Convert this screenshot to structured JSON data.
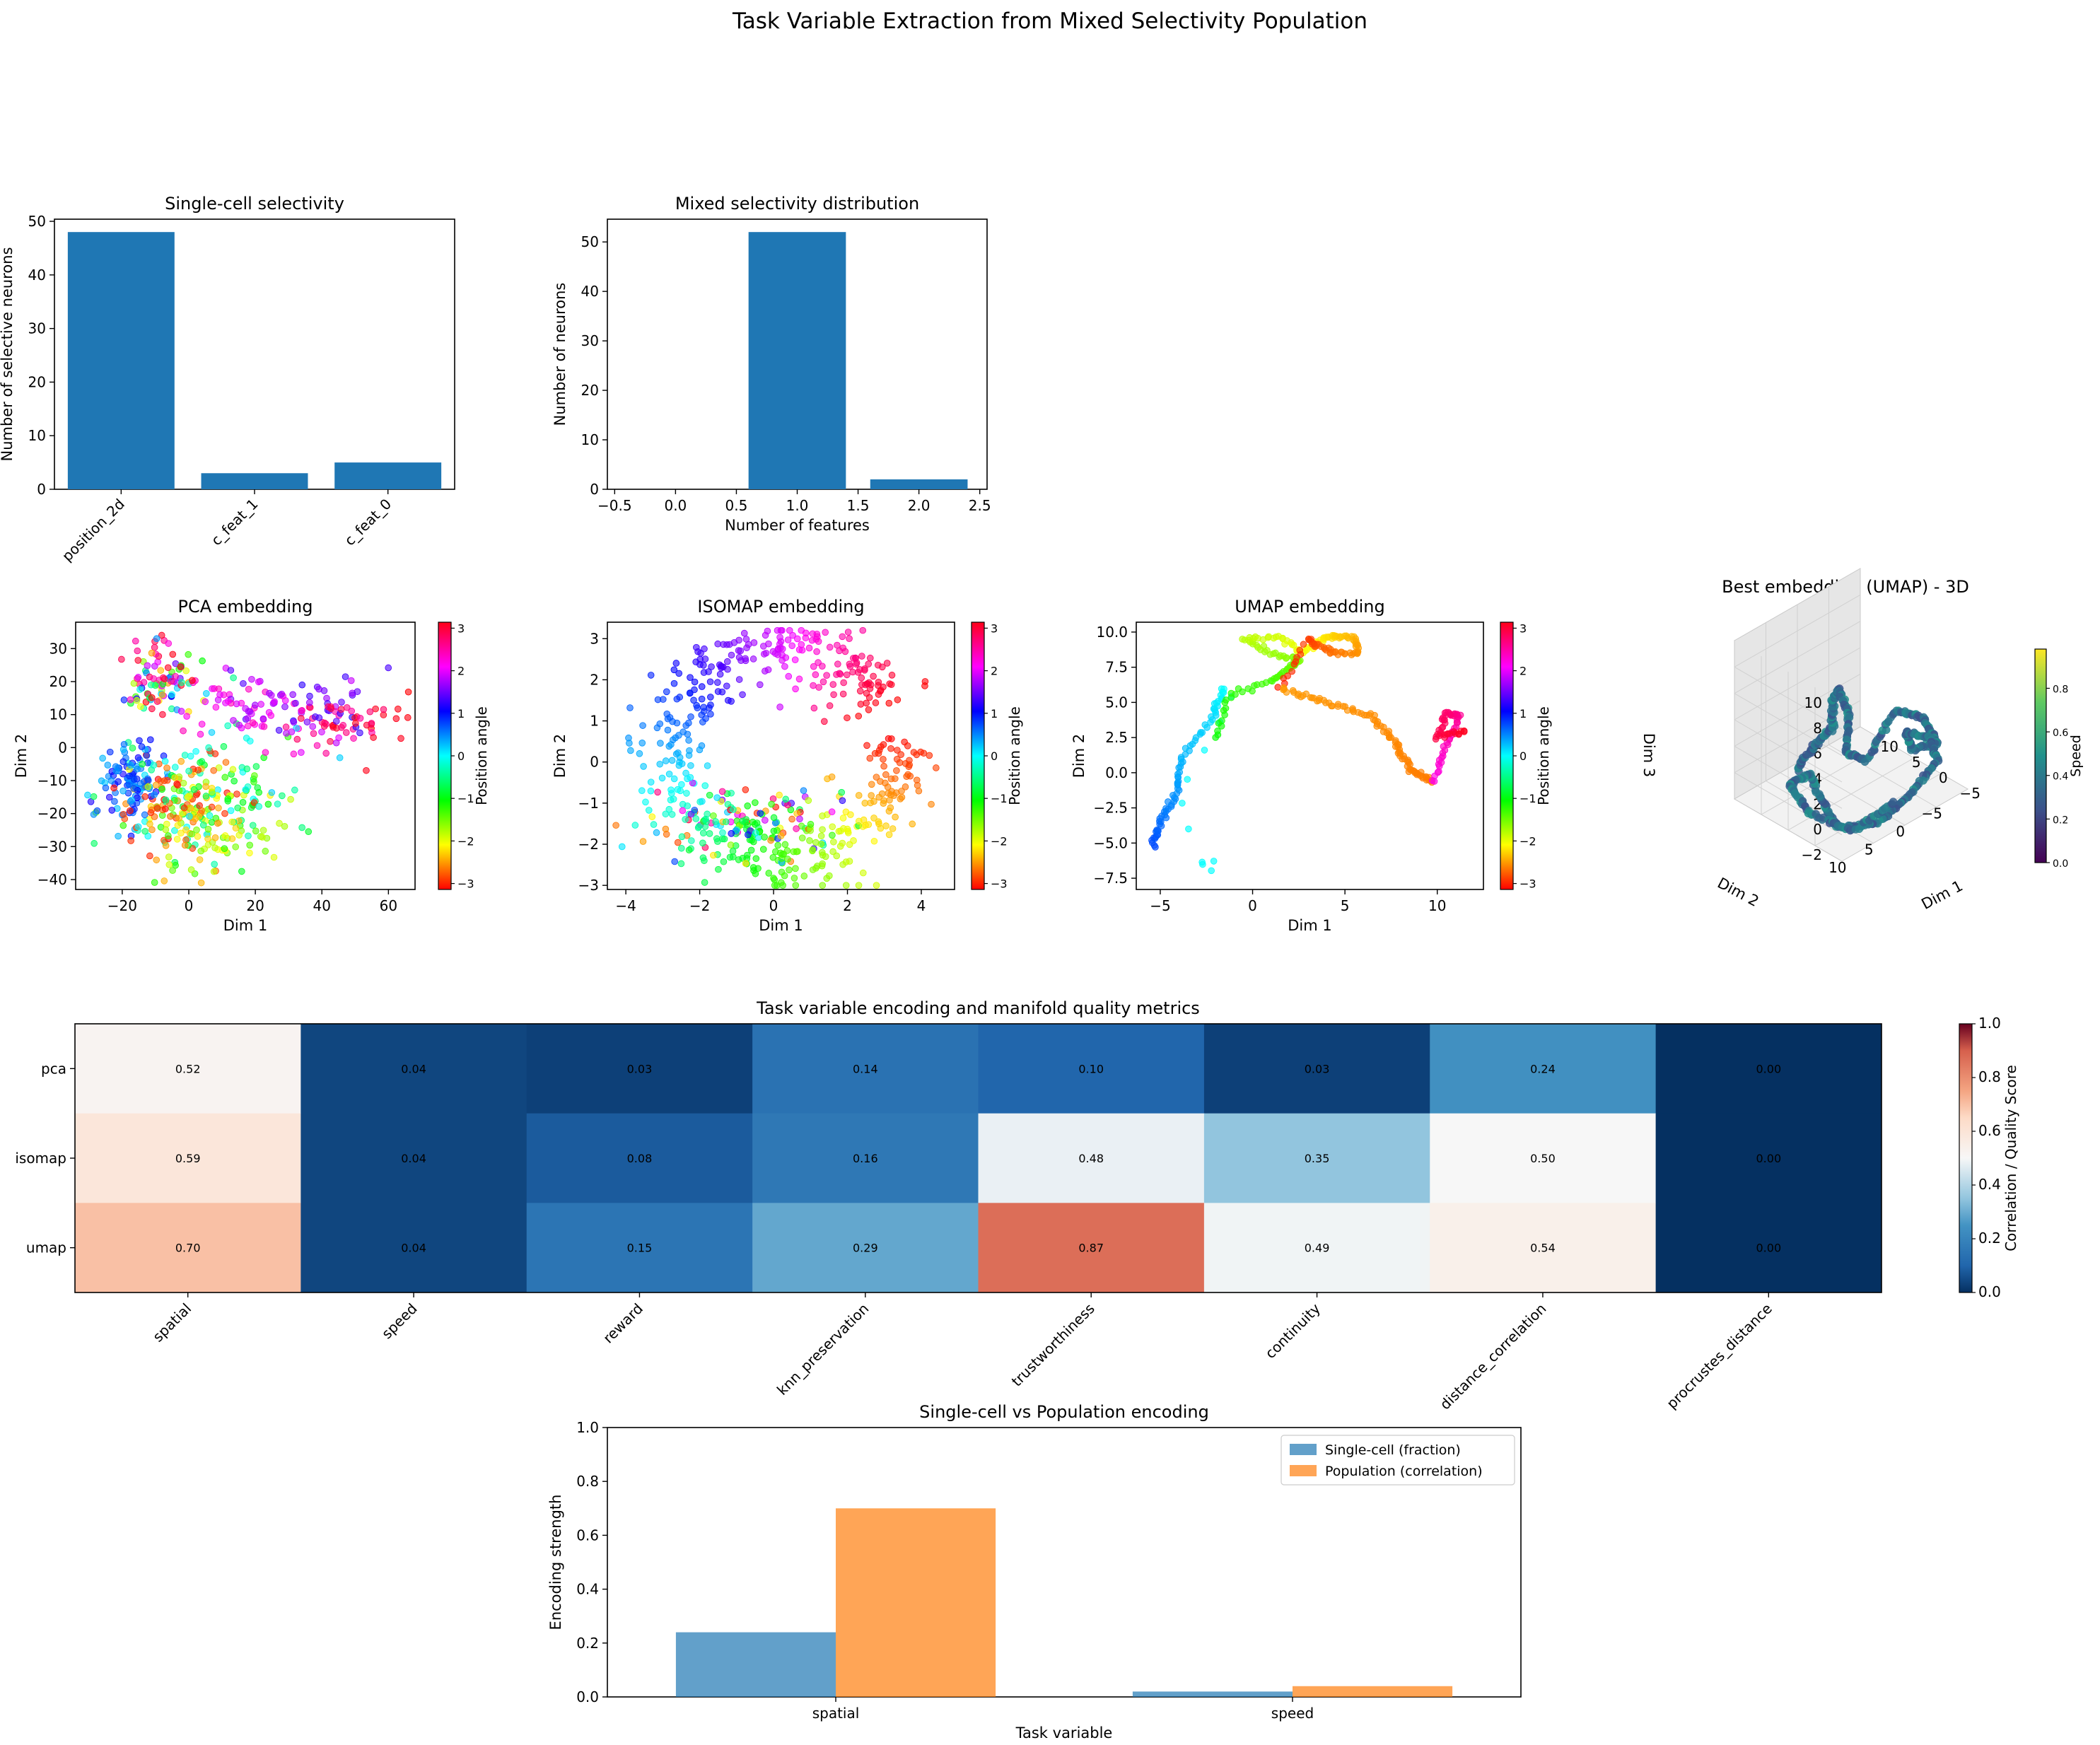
{
  "figure_title": "Task Variable Extraction from Mixed Selectivity Population",
  "chart_data": [
    {
      "id": "single_cell",
      "type": "bar",
      "title": "Single-cell selectivity",
      "xlabel": "",
      "ylabel": "Number of selective neurons",
      "categories": [
        "position_2d",
        "c_feat_1",
        "c_feat_0"
      ],
      "values": [
        48,
        3,
        5
      ],
      "ylim": [
        0,
        50.4
      ],
      "yticks": [
        0,
        10,
        20,
        30,
        40,
        50
      ],
      "color": "#1f77b4"
    },
    {
      "id": "mixed",
      "type": "bar",
      "title": "Mixed selectivity distribution",
      "xlabel": "Number of features",
      "ylabel": "Number of neurons",
      "x": [
        1,
        2
      ],
      "values": [
        52,
        2
      ],
      "xlim": [
        -0.56,
        2.56
      ],
      "ylim": [
        0,
        54.6
      ],
      "xticks": [
        "-0.5",
        "0.0",
        "0.5",
        "1.0",
        "1.5",
        "2.0",
        "2.5"
      ],
      "yticks": [
        0,
        10,
        20,
        30,
        40,
        50
      ],
      "color": "#1f77b4"
    },
    {
      "id": "pca",
      "type": "scatter",
      "title": "PCA embedding",
      "xlabel": "Dim 1",
      "ylabel": "Dim 2",
      "xlim": [
        -34,
        68
      ],
      "ylim": [
        -43,
        38
      ],
      "xticks": [
        -20,
        0,
        20,
        40,
        60
      ],
      "yticks": [
        -40,
        -30,
        -20,
        -10,
        0,
        10,
        20,
        30
      ],
      "colorbar": {
        "label": "Position angle",
        "ticks": [
          -3,
          -2,
          -1,
          0,
          1,
          2,
          3
        ],
        "range": [
          -3.14,
          3.14
        ]
      }
    },
    {
      "id": "isomap",
      "type": "scatter",
      "title": "ISOMAP embedding",
      "xlabel": "Dim 1",
      "ylabel": "Dim 2",
      "xlim": [
        -4.5,
        4.9
      ],
      "ylim": [
        -3.1,
        3.4
      ],
      "xticks": [
        -4,
        -2,
        0,
        2,
        4
      ],
      "yticks": [
        -3,
        -2,
        -1,
        0,
        1,
        2,
        3
      ],
      "colorbar": {
        "label": "Position angle",
        "ticks": [
          -3,
          -2,
          -1,
          0,
          1,
          2,
          3
        ],
        "range": [
          -3.14,
          3.14
        ]
      }
    },
    {
      "id": "umap",
      "type": "scatter",
      "title": "UMAP embedding",
      "xlabel": "Dim 1",
      "ylabel": "Dim 2",
      "xlim": [
        -6.3,
        12.5
      ],
      "ylim": [
        -8.3,
        10.7
      ],
      "xticks": [
        -5,
        0,
        5,
        10
      ],
      "yticks": [
        -7.5,
        -5.0,
        -2.5,
        0.0,
        2.5,
        5.0,
        7.5,
        10.0
      ],
      "yticklabels": [
        "−7.5",
        "−5.0",
        "−2.5",
        "0.0",
        "2.5",
        "5.0",
        "7.5",
        "10.0"
      ],
      "colorbar": {
        "label": "Position angle",
        "ticks": [
          -3,
          -2,
          -1,
          0,
          1,
          2,
          3
        ],
        "range": [
          -3.14,
          3.14
        ]
      }
    },
    {
      "id": "umap3d",
      "type": "scatter",
      "title": "Best embedding (UMAP) - 3D",
      "xlabel": "Dim 1",
      "ylabel": "Dim 2",
      "zlabel": "Dim 3",
      "xticks": [
        "−5",
        "0",
        "5",
        "10"
      ],
      "yticks": [
        "−5",
        "0",
        "5",
        "10"
      ],
      "zticks": [
        "−2",
        "0",
        "2",
        "4",
        "6",
        "8",
        "10"
      ],
      "colorbar": {
        "label": "Speed",
        "ticks": [
          "0.0",
          "0.2",
          "0.4",
          "0.6",
          "0.8"
        ],
        "range": [
          0,
          0.98
        ]
      }
    },
    {
      "id": "heatmap",
      "type": "heatmap",
      "title": "Task variable encoding and manifold quality metrics",
      "rows": [
        "pca",
        "isomap",
        "umap"
      ],
      "columns": [
        "spatial",
        "speed",
        "reward",
        "knn_preservation",
        "trustworthiness",
        "continuity",
        "distance_correlation",
        "procrustes_distance"
      ],
      "values": [
        [
          0.52,
          0.04,
          0.03,
          0.14,
          0.1,
          0.03,
          0.24,
          0.0
        ],
        [
          0.59,
          0.04,
          0.08,
          0.16,
          0.48,
          0.35,
          0.5,
          0.0
        ],
        [
          0.7,
          0.04,
          0.15,
          0.29,
          0.87,
          0.49,
          0.54,
          0.0
        ]
      ],
      "value_labels": [
        [
          "0.52",
          "0.04",
          "0.03",
          "0.14",
          "0.10",
          "0.03",
          "0.24",
          "0.00"
        ],
        [
          "0.59",
          "0.04",
          "0.08",
          "0.16",
          "0.48",
          "0.35",
          "0.50",
          "0.00"
        ],
        [
          "0.70",
          "0.04",
          "0.15",
          "0.29",
          "0.87",
          "0.49",
          "0.54",
          "0.00"
        ]
      ],
      "colorbar": {
        "label": "Correlation / Quality Score",
        "ticks": [
          "0.0",
          "0.2",
          "0.4",
          "0.6",
          "0.8",
          "1.0"
        ],
        "range": [
          0,
          1
        ]
      }
    },
    {
      "id": "compare",
      "type": "bar",
      "title": "Single-cell vs Population encoding",
      "xlabel": "Task variable",
      "ylabel": "Encoding strength",
      "categories": [
        "spatial",
        "speed"
      ],
      "series": [
        {
          "name": "Single-cell (fraction)",
          "values": [
            0.24,
            0.02
          ],
          "color": "#1f77b4"
        },
        {
          "name": "Population (correlation)",
          "values": [
            0.7,
            0.04
          ],
          "color": "#ff7f0e"
        }
      ],
      "ylim": [
        0,
        1.0
      ],
      "yticks": [
        "0.0",
        "0.2",
        "0.4",
        "0.6",
        "0.8",
        "1.0"
      ],
      "legend": "top-right"
    }
  ]
}
